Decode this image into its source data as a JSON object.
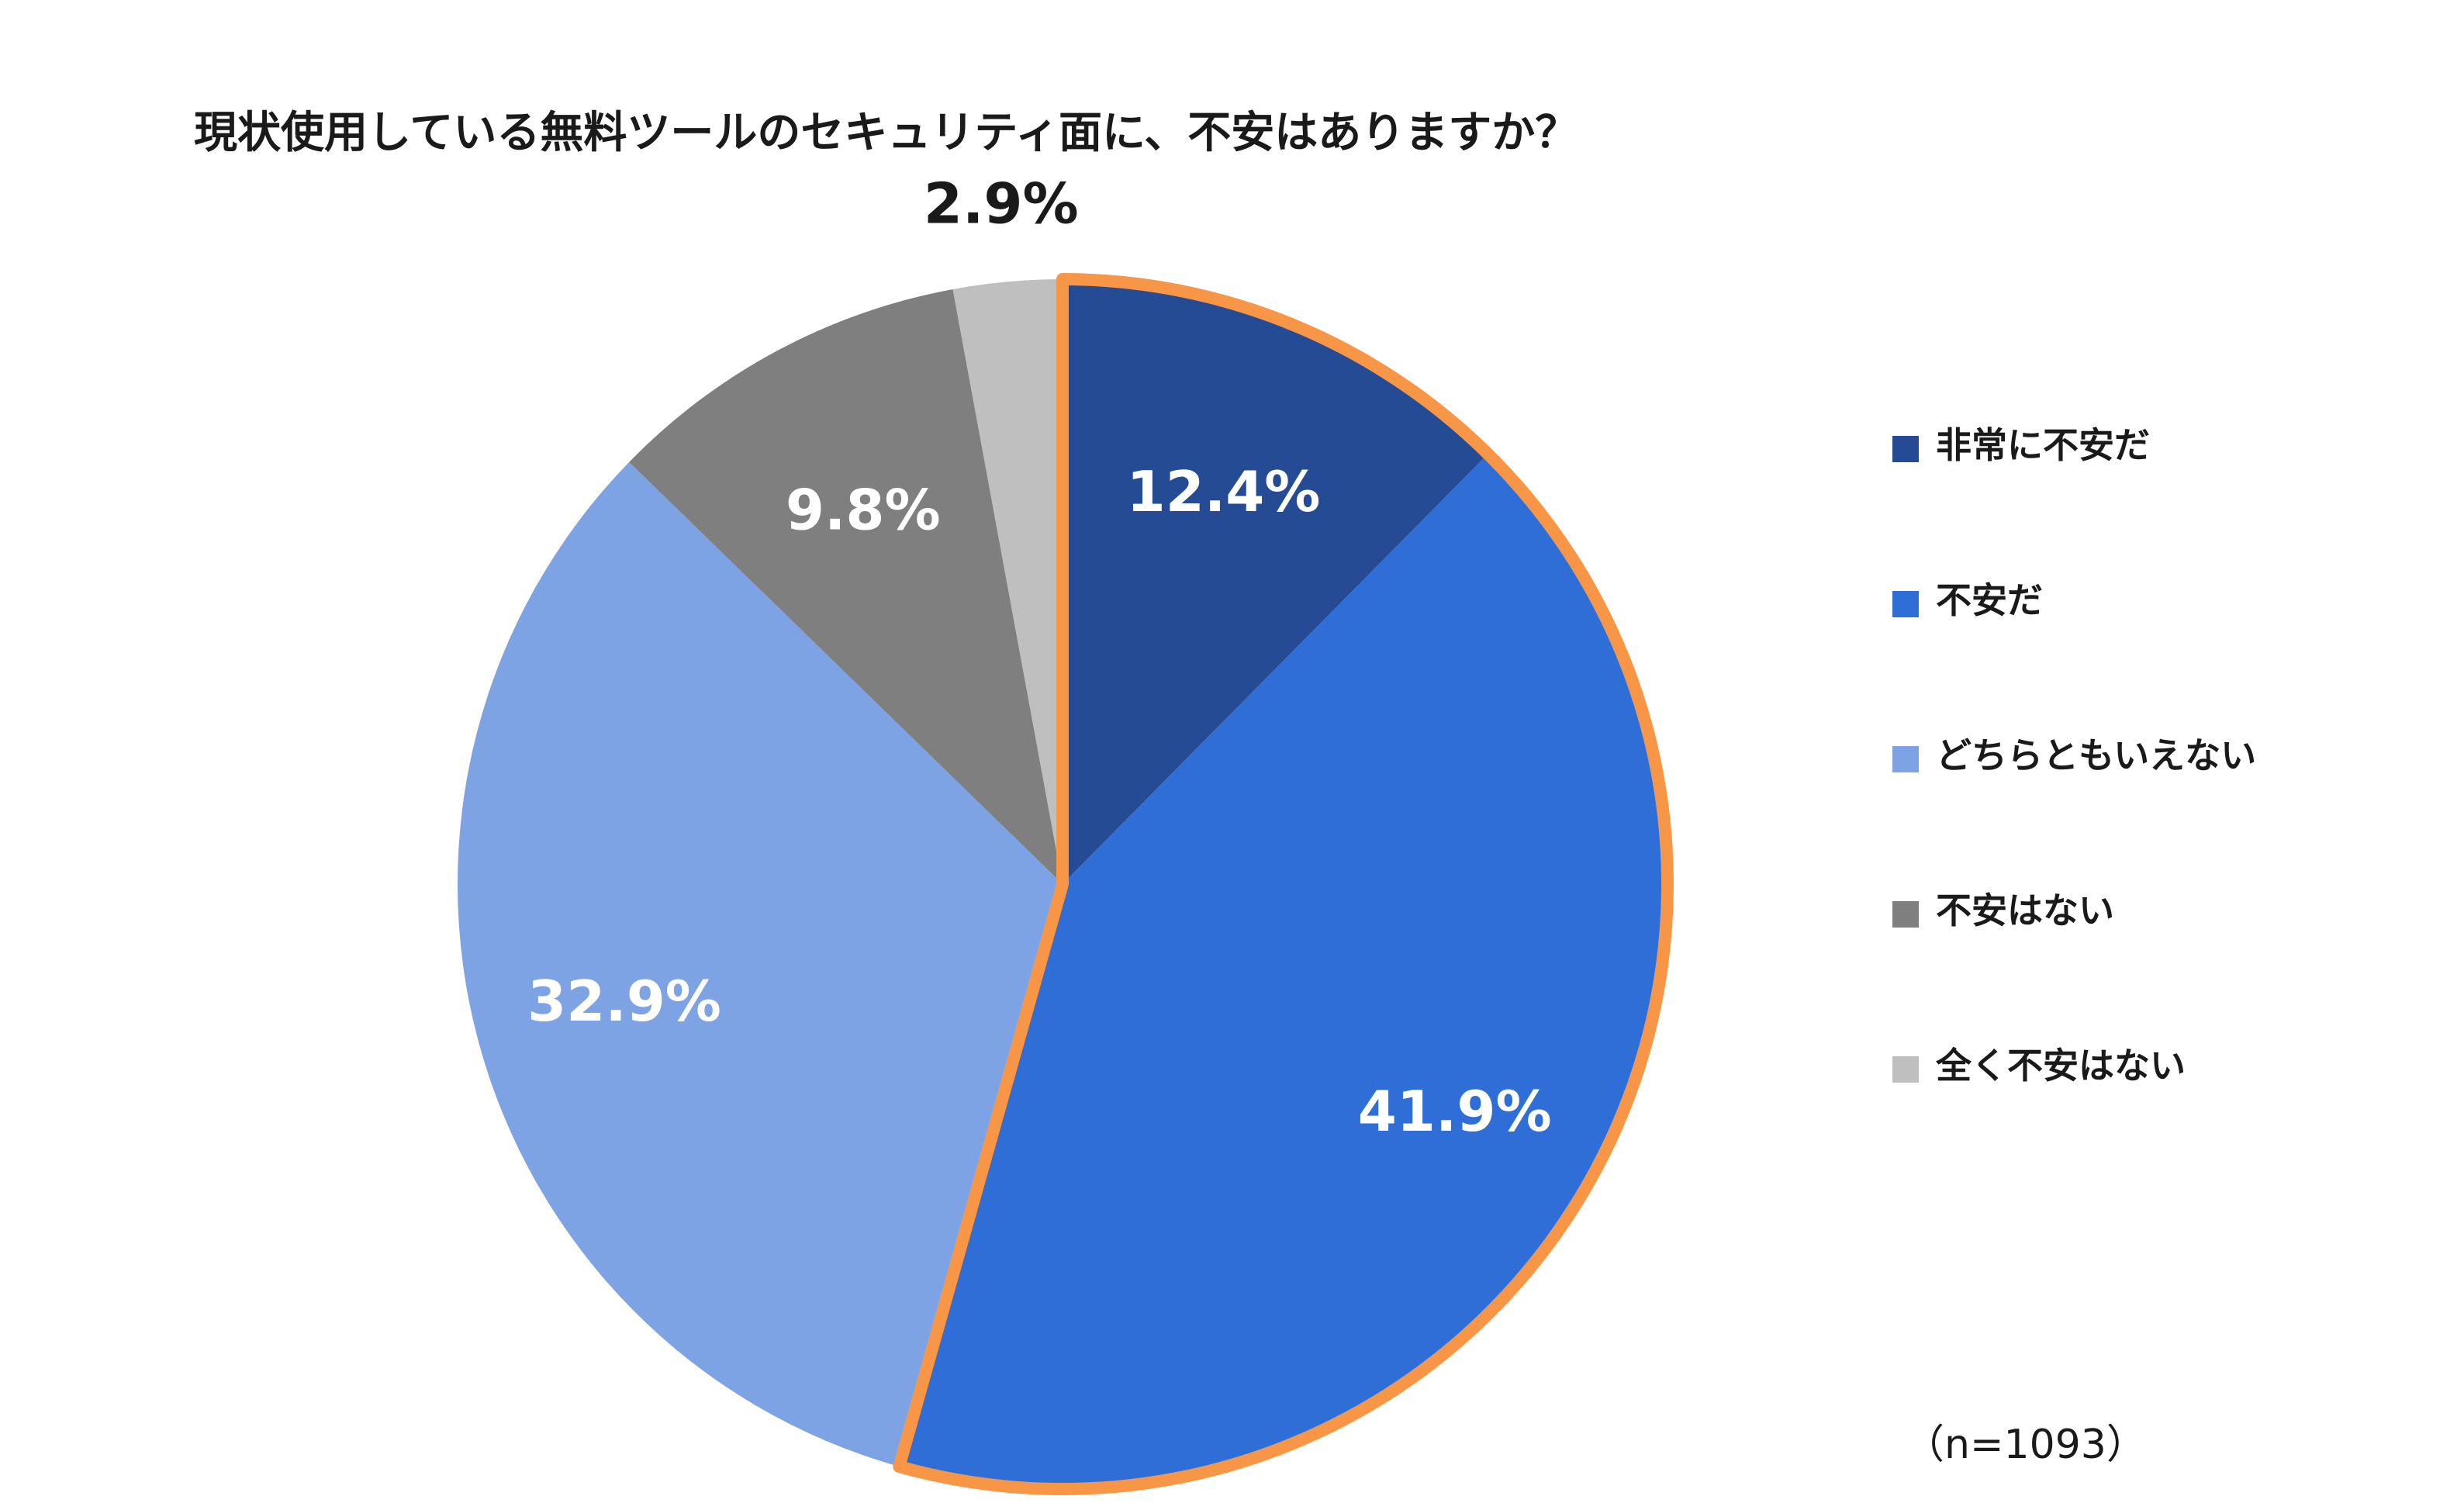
{
  "chart_data": {
    "type": "pie",
    "title": "現状使用している無料ツールのセキュリティ面に、不安はありますか？",
    "sample_note": "（n=1093）",
    "start_angle_deg": 0,
    "direction": "clockwise",
    "highlight_color": "#F79646",
    "highlight_categories": [
      "非常に不安だ",
      "不安だ"
    ],
    "slices": [
      {
        "label": "非常に不安だ",
        "value": 12.4,
        "display": "12.4%",
        "color": "#244B93",
        "label_color": "#FFFFFF"
      },
      {
        "label": "不安だ",
        "value": 41.9,
        "display": "41.9%",
        "color": "#2F6ED6",
        "label_color": "#FFFFFF"
      },
      {
        "label": "どちらともいえない",
        "value": 32.9,
        "display": "32.9%",
        "color": "#7DA3E5",
        "label_color": "#FFFFFF"
      },
      {
        "label": "不安はない",
        "value": 9.8,
        "display": "9.8%",
        "color": "#7F7F7F",
        "label_color": "#FFFFFF"
      },
      {
        "label": "全く不安はない",
        "value": 2.9,
        "display": "2.9%",
        "color": "#BFBFBF",
        "label_color": "#1A1A1A",
        "label_outside": true
      }
    ],
    "legend": {
      "placement": "right",
      "entries": [
        "非常に不安だ",
        "不安だ",
        "どちらともいえない",
        "不安はない",
        "全く不安はない"
      ]
    }
  }
}
